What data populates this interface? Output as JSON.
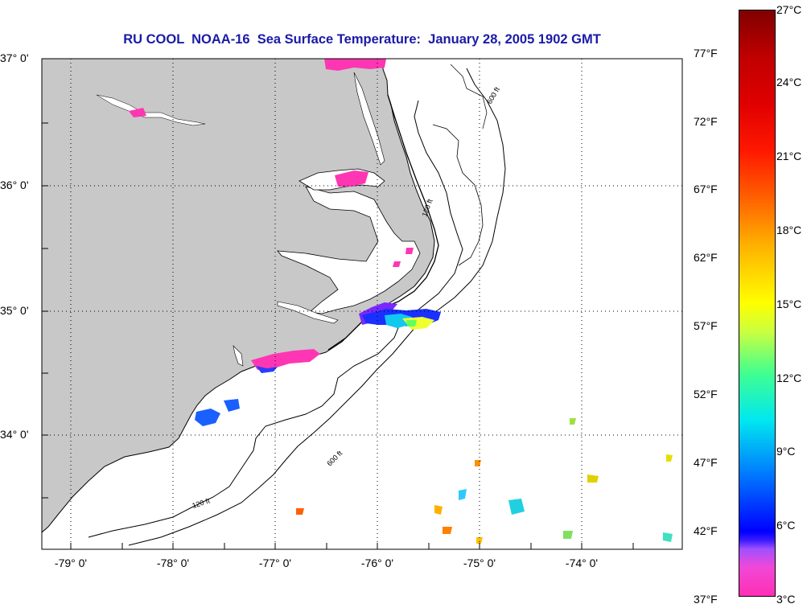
{
  "title": "RU COOL  NOAA-16  Sea Surface Temperature:  January 28, 2005 1902 GMT",
  "latitude_labels": [
    "37° 0'",
    "36° 0'",
    "35° 0'",
    "34° 0'"
  ],
  "longitude_labels": [
    "-79° 0'",
    "-78° 0'",
    "-77° 0'",
    "-76° 0'",
    "-75° 0'",
    "-74° 0'"
  ],
  "bathymetry_labels": [
    "120 ft",
    "600 ft"
  ],
  "colorbar": {
    "fahrenheit_labels": [
      "77°F",
      "72°F",
      "67°F",
      "62°F",
      "57°F",
      "52°F",
      "47°F",
      "42°F",
      "37°F"
    ],
    "celsius_labels": [
      "27°C",
      "24°C",
      "21°C",
      "18°C",
      "15°C",
      "12°C",
      "9°C",
      "6°C",
      "3°C"
    ]
  },
  "colors": {
    "land": "#c8c8c8",
    "title": "#1a1aa8",
    "ocean_missing": "#ffffff"
  }
}
